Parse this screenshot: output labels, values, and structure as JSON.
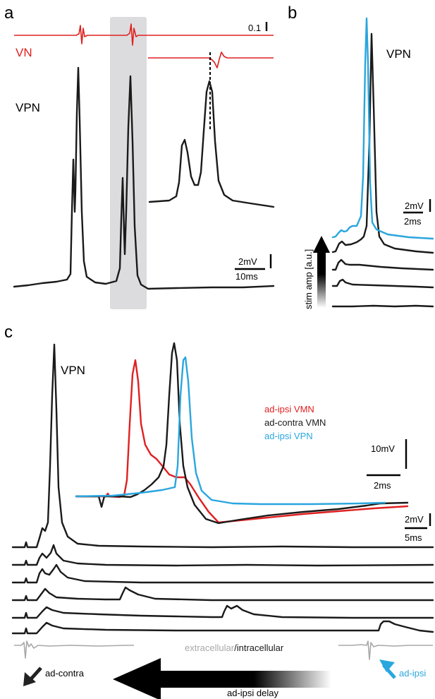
{
  "colors": {
    "red": "#e02020",
    "black": "#1a1a1a",
    "blue": "#2aa6de",
    "gray": "#a8a8a8",
    "shade": "#dcdcde"
  },
  "panel_a": {
    "letter": "a",
    "vn_label": "VN",
    "vpn_label": "VPN",
    "scale_top": "0.1",
    "scale_mv": "2mV",
    "scale_ms": "10ms"
  },
  "panel_b": {
    "letter": "b",
    "vpn_label": "VPN",
    "scale_mv": "2mV",
    "scale_ms": "2ms",
    "stim_label": "stim amp [a.u.]"
  },
  "panel_c": {
    "letter": "c",
    "vpn_label": "VPN",
    "legend": {
      "ad_ipsi_vmn": "ad-ipsi VMN",
      "ad_contra_vmn": "ad-contra VMN",
      "ad_ipsi_vpn": "ad-ipsi VPN"
    },
    "scale_inset_mv": "10mV",
    "scale_inset_ms": "2ms",
    "scale_mv": "2mV",
    "scale_ms": "5ms",
    "extracellular": "extracellular",
    "slash": "/",
    "intracellular": "intracellular",
    "ad_contra": "ad-contra",
    "ad_ipsi": "ad-ipsi",
    "delay_label": "ad-ipsi delay"
  }
}
